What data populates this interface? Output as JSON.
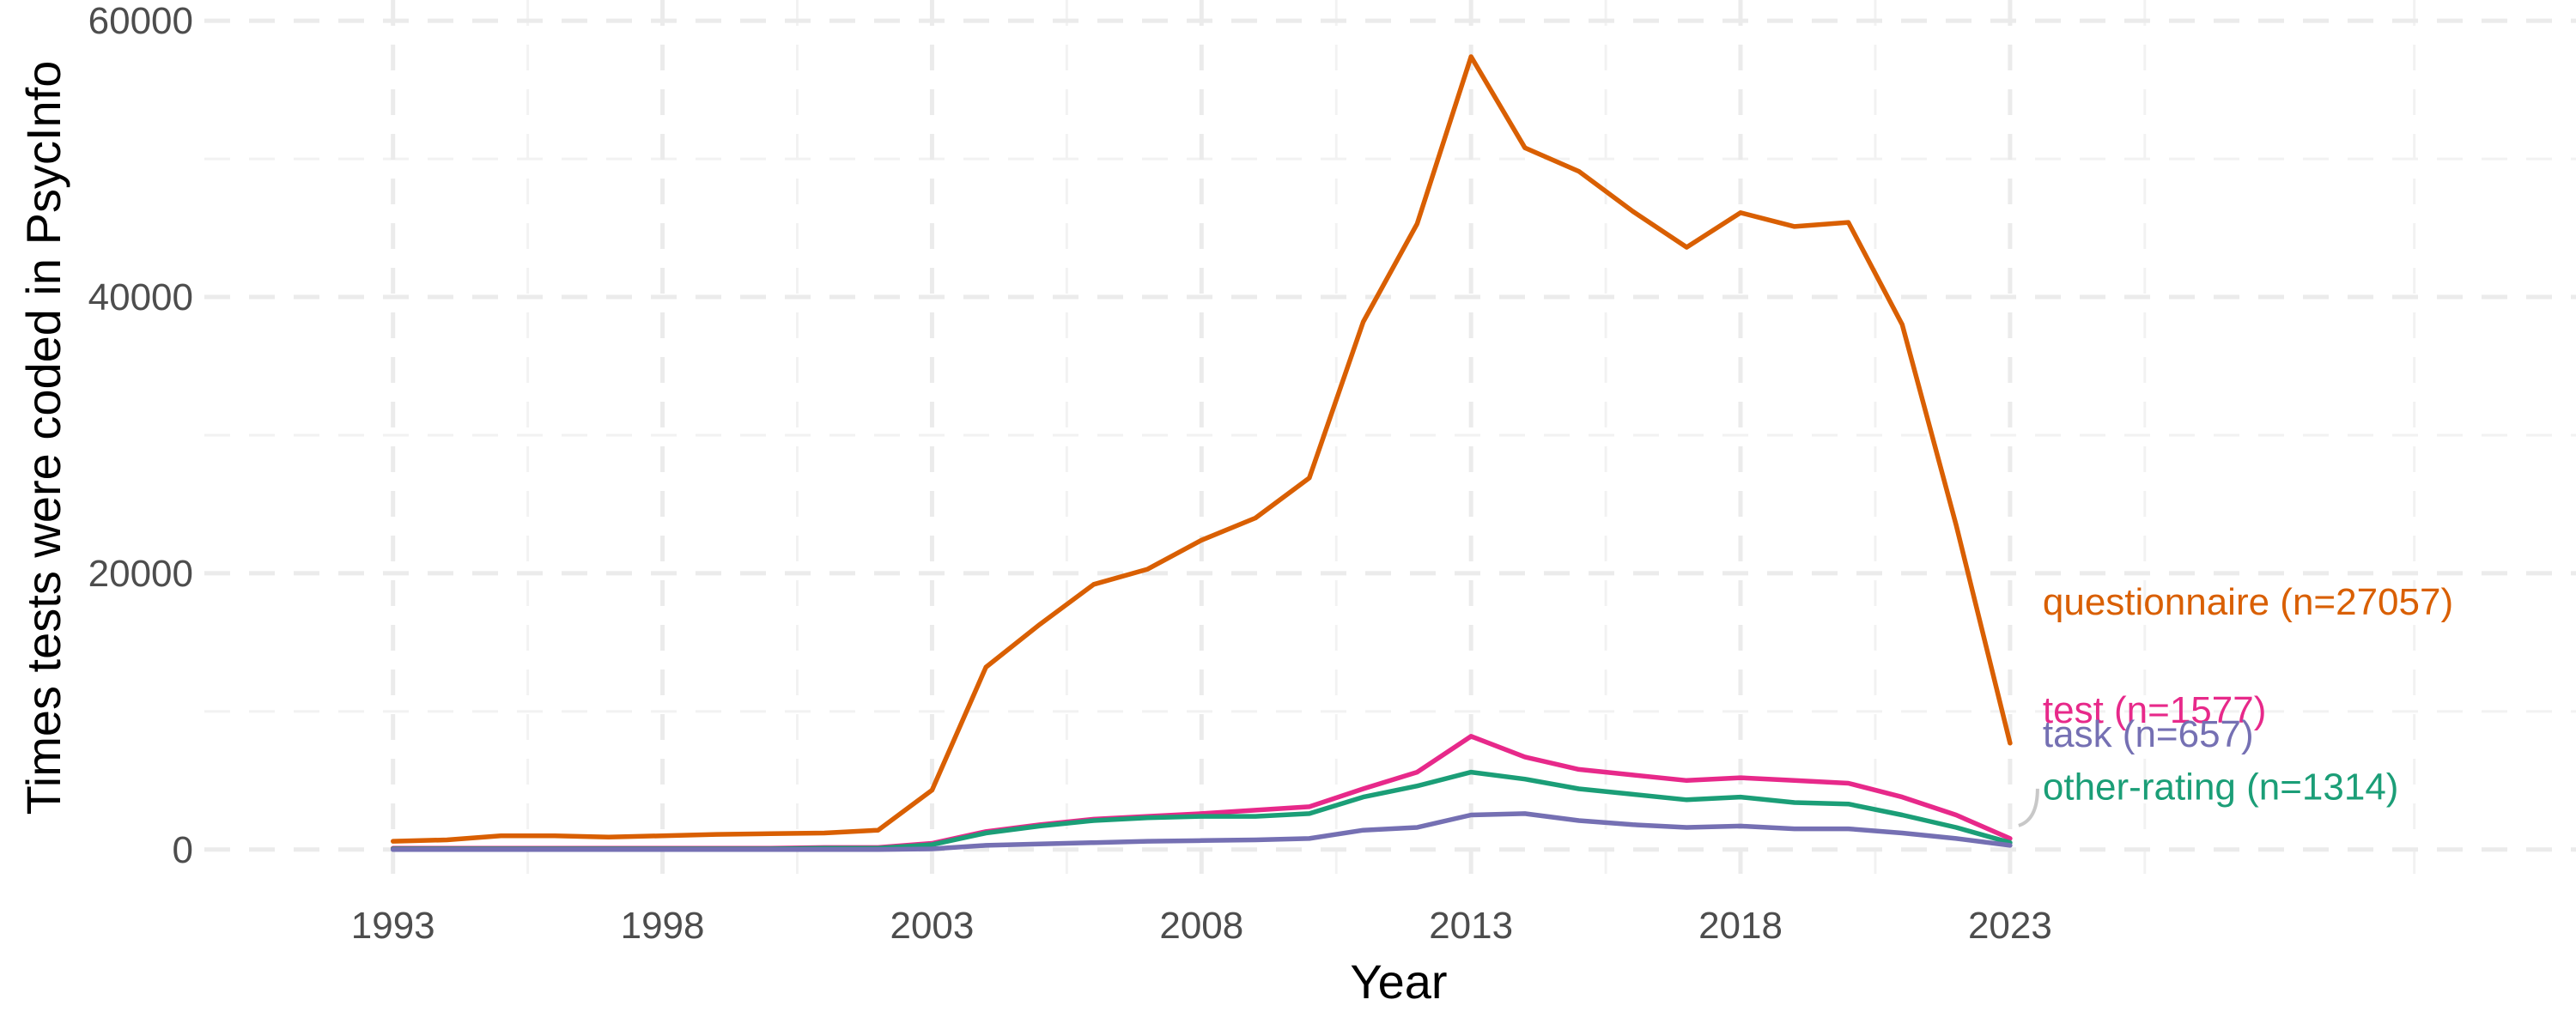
{
  "chart_data": {
    "type": "line",
    "xlabel": "Year",
    "ylabel": "Times tests were coded in PsycInfo",
    "xlim": [
      1989.5,
      2033.5
    ],
    "ylim": [
      -2500,
      61500
    ],
    "x_ticks": [
      1993,
      1998,
      2003,
      2008,
      2013,
      2018,
      2023
    ],
    "y_ticks": [
      0,
      20000,
      40000,
      60000
    ],
    "grid": true,
    "legend": "direct labels at line ends (right)",
    "x": [
      1993,
      1994,
      1995,
      1996,
      1997,
      1998,
      1999,
      2000,
      2001,
      2002,
      2003,
      2004,
      2005,
      2006,
      2007,
      2008,
      2009,
      2010,
      2011,
      2012,
      2013,
      2014,
      2015,
      2016,
      2017,
      2018,
      2019,
      2020,
      2021,
      2022,
      2023
    ],
    "series": [
      {
        "name": "questionnaire (n=27057)",
        "color": "#d95f02",
        "values": [
          600,
          700,
          1000,
          1000,
          900,
          1000,
          1100,
          1150,
          1200,
          1400,
          4300,
          13200,
          16300,
          19200,
          20300,
          22400,
          24000,
          26900,
          38200,
          45300,
          57400,
          50800,
          49100,
          46200,
          43600,
          46100,
          45100,
          45400,
          38000,
          23500,
          7700
        ]
      },
      {
        "name": "test (n=1577)",
        "color": "#e7298a",
        "values": [
          100,
          100,
          100,
          100,
          100,
          100,
          100,
          100,
          150,
          150,
          450,
          1300,
          1800,
          2200,
          2400,
          2600,
          2850,
          3100,
          4400,
          5600,
          8200,
          6700,
          5800,
          5400,
          5000,
          5200,
          5000,
          4800,
          3800,
          2500,
          800
        ]
      },
      {
        "name": "other-rating (n=1314)",
        "color": "#1b9e77",
        "values": [
          50,
          50,
          50,
          50,
          50,
          50,
          50,
          50,
          100,
          100,
          350,
          1200,
          1700,
          2100,
          2300,
          2400,
          2400,
          2600,
          3800,
          4600,
          5600,
          5100,
          4400,
          4000,
          3600,
          3800,
          3400,
          3300,
          2500,
          1600,
          500
        ]
      },
      {
        "name": "task (n=657)",
        "color": "#7570b3",
        "values": [
          0,
          0,
          0,
          0,
          0,
          0,
          0,
          0,
          0,
          0,
          50,
          300,
          400,
          500,
          600,
          650,
          700,
          800,
          1400,
          1600,
          2500,
          2600,
          2100,
          1800,
          1600,
          1700,
          1500,
          1500,
          1200,
          800,
          300
        ]
      }
    ]
  }
}
